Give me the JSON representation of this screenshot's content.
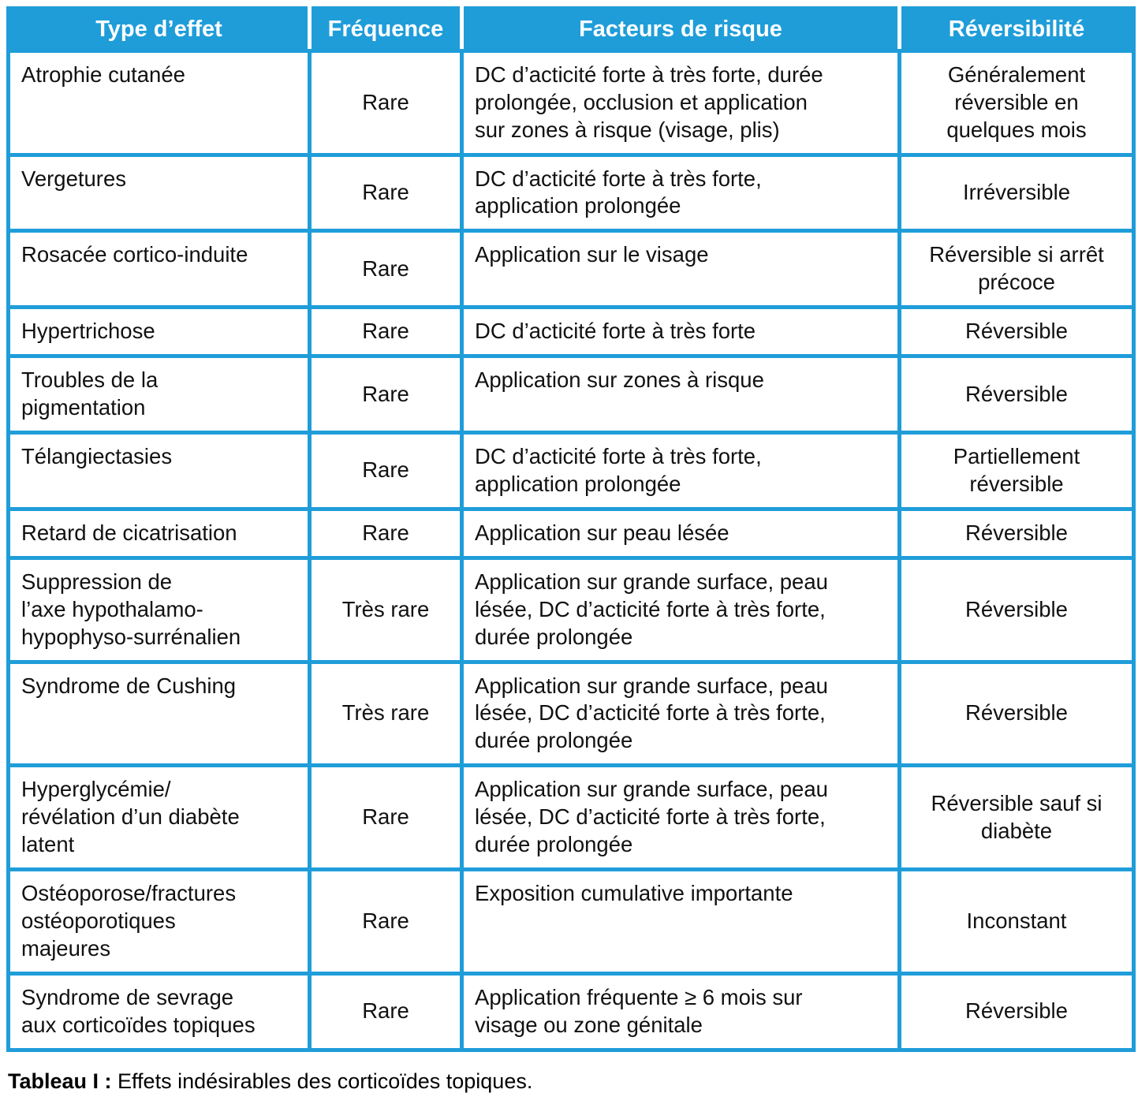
{
  "colors": {
    "accent_blue": "#1f9dd9",
    "header_text": "#ffffff",
    "body_text": "#111111"
  },
  "table": {
    "headers": [
      "Type d’effet",
      "Fréquence",
      "Facteurs de risque",
      "Réversibilité"
    ],
    "rows": [
      {
        "effect": "Atrophie cutanée",
        "frequency": "Rare",
        "risk_factors": "DC d’acticité forte à très forte, durée\nprolongée, occlusion et application\nsur zones à risque (visage, plis)",
        "reversibility": "Généralement\nréversible en\nquelques mois"
      },
      {
        "effect": "Vergetures",
        "frequency": "Rare",
        "risk_factors": "DC d’acticité forte à très forte,\napplication prolongée",
        "reversibility": "Irréversible"
      },
      {
        "effect": "Rosacée cortico-induite",
        "frequency": "Rare",
        "risk_factors": "Application sur le visage",
        "reversibility": "Réversible si arrêt\nprécoce"
      },
      {
        "effect": "Hypertrichose",
        "frequency": "Rare",
        "risk_factors": "DC d’acticité forte à très forte",
        "reversibility": "Réversible"
      },
      {
        "effect": "Troubles de la\npigmentation",
        "frequency": "Rare",
        "risk_factors": "Application sur zones à risque",
        "reversibility": "Réversible"
      },
      {
        "effect": "Télangiectasies",
        "frequency": "Rare",
        "risk_factors": "DC d’acticité forte à très forte,\napplication prolongée",
        "reversibility": "Partiellement\nréversible"
      },
      {
        "effect": "Retard de cicatrisation",
        "frequency": "Rare",
        "risk_factors": "Application sur peau lésée",
        "reversibility": "Réversible"
      },
      {
        "effect": "Suppression de\nl’axe hypothalamo-\nhypophyso-surrénalien",
        "frequency": "Très rare",
        "risk_factors": "Application sur grande surface, peau\nlésée, DC d’acticité forte à très forte,\ndurée prolongée",
        "reversibility": "Réversible"
      },
      {
        "effect": "Syndrome de Cushing",
        "frequency": "Très rare",
        "risk_factors": "Application sur grande surface, peau\nlésée, DC d’acticité forte à très forte,\ndurée prolongée",
        "reversibility": "Réversible"
      },
      {
        "effect": "Hyperglycémie/\nrévélation d’un diabète\nlatent",
        "frequency": "Rare",
        "risk_factors": "Application sur grande surface, peau\nlésée, DC d’acticité forte à très forte,\ndurée prolongée",
        "reversibility": "Réversible sauf si\ndiabète"
      },
      {
        "effect": "Ostéoporose/fractures\nostéoporotiques\nmajeures",
        "frequency": "Rare",
        "risk_factors": "Exposition cumulative importante",
        "reversibility": "Inconstant"
      },
      {
        "effect": "Syndrome de sevrage\naux corticoïdes topiques",
        "frequency": "Rare",
        "risk_factors": "Application fréquente ≥ 6 mois sur\nvisage ou zone génitale",
        "reversibility": "Réversible"
      }
    ]
  },
  "caption": {
    "label": "Tableau I :",
    "text": " Effets indésirables des corticoïdes topiques."
  }
}
